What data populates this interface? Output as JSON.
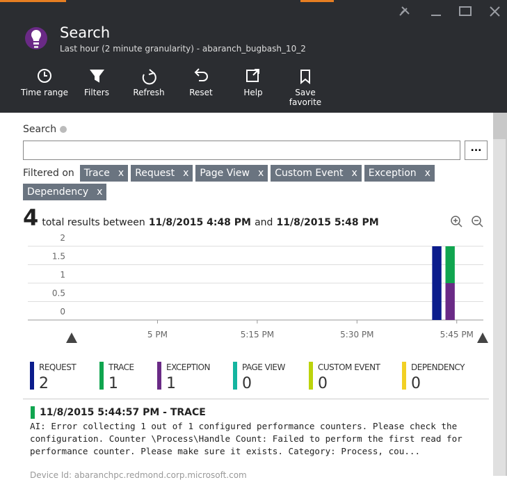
{
  "header": {
    "title": "Search",
    "subtitle": "Last hour (2 minute granularity) - abaranch_bugbash_10_2"
  },
  "toolbar": [
    "Time range",
    "Filters",
    "Refresh",
    "Reset",
    "Help",
    "Save favorite"
  ],
  "search": {
    "label": "Search",
    "more": "..."
  },
  "filters": {
    "label": "Filtered on",
    "remove": "x",
    "items": [
      "Trace",
      "Request",
      "Page View",
      "Custom Event",
      "Exception",
      "Dependency"
    ]
  },
  "summary": {
    "count": "4",
    "text": "total results between",
    "start": "11/8/2015 4:48 PM",
    "and": "and",
    "end": "11/8/2015 5:48 PM"
  },
  "chart_data": {
    "type": "stacked-bar",
    "x": [
      1062,
      1064
    ],
    "xlim": [
      1000.5,
      1069
    ],
    "xticks": [
      {
        "value": 1020,
        "label": "5 PM"
      },
      {
        "value": 1035,
        "label": "5:15 PM"
      },
      {
        "value": 1050,
        "label": "5:30 PM"
      },
      {
        "value": 1065,
        "label": "5:45 PM"
      }
    ],
    "ylim": [
      0,
      2
    ],
    "yticks": [
      0,
      0.5,
      1,
      1.5,
      2
    ],
    "grid": true,
    "series": [
      {
        "name": "REQUEST",
        "color": "#0b1c8c",
        "values": [
          2,
          0
        ],
        "total": 2
      },
      {
        "name": "TRACE",
        "color": "#10a54f",
        "values": [
          0,
          1
        ],
        "total": 1
      },
      {
        "name": "EXCEPTION",
        "color": "#6a2a86",
        "values": [
          0,
          1
        ],
        "total": 1
      },
      {
        "name": "PAGE VIEW",
        "color": "#14b5a0",
        "values": [
          0,
          0
        ],
        "total": 0
      },
      {
        "name": "CUSTOM EVENT",
        "color": "#bcd30c",
        "values": [
          0,
          0
        ],
        "total": 0
      },
      {
        "name": "DEPENDENCY",
        "color": "#f2d024",
        "values": [
          0,
          0
        ],
        "total": 0
      }
    ]
  },
  "result": {
    "title": "11/8/2015 5:44:57 PM - TRACE",
    "message": "AI: Error collecting 1 out of 1 configured performance counters. Please check the configuration. Counter \\Process\\Handle Count: Failed to perform the first read for performance counter. Please make sure it exists. Category: Process, cou...",
    "device": "Device Id: abaranchpc.redmond.corp.microsoft.com"
  }
}
